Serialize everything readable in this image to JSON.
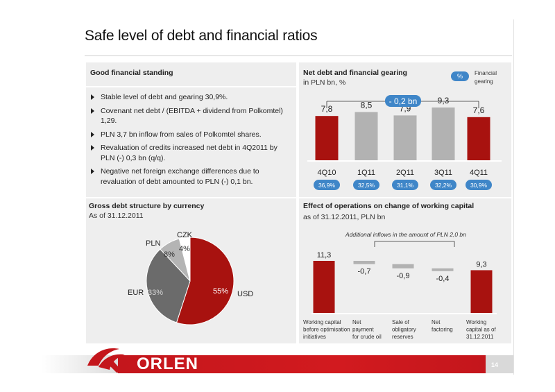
{
  "title": "Safe level of debt and financial ratios",
  "left_top": {
    "heading": "Good financial standing",
    "bullets": [
      "Stable level of debt and gearing 30,9%.",
      "Covenant net debt / (EBITDA + dividend from Polkomtel) 1,29.",
      "PLN 3,7 bn inflow from sales of Polkomtel shares.",
      "Revaluation of credits increased net debt in 4Q2011 by PLN (-) 0,3 bn (q/q).",
      "Negative net foreign exchange differences due to revaluation of debt amounted to PLN (-) 0,1 bn."
    ]
  },
  "net_debt": {
    "heading": "Net debt and financial gearing",
    "subheading": "in PLN bn, %",
    "legend_badge": "%",
    "legend_label": "Financial gearing",
    "change_label": "- 0,2 bn",
    "colors": {
      "red": "#a8120f",
      "grey": "#b2b2b2",
      "badge": "#3f86c8"
    }
  },
  "gross_debt": {
    "heading": "Gross debt structure by currency",
    "subheading": "As of 31.12.2011"
  },
  "working_capital": {
    "heading": "Effect of operations on change of working capital",
    "subheading": "as of 31.12.2011, PLN bn",
    "note": "Additional inflows in the amount of PLN 2,0 bn"
  },
  "footer": {
    "logo": "ORLEN",
    "page": "14"
  },
  "chart_data": [
    {
      "type": "bar",
      "title": "Net debt and financial gearing",
      "categories": [
        "4Q10",
        "1Q11",
        "2Q11",
        "3Q11",
        "4Q11"
      ],
      "values": [
        7.8,
        8.5,
        7.9,
        9.3,
        7.6
      ],
      "value_labels": [
        "7,8",
        "8,5",
        "7,9",
        "9,3",
        "7,6"
      ],
      "gearing": [
        "36,9%",
        "32,5%",
        "31,1%",
        "32,2%",
        "30,9%"
      ],
      "highlight": [
        true,
        false,
        false,
        false,
        true
      ],
      "ylim": [
        0,
        11
      ]
    },
    {
      "type": "pie",
      "title": "Gross debt structure by currency",
      "slices": [
        {
          "name": "USD",
          "value": 55,
          "label": "55%",
          "color": "#a8120f"
        },
        {
          "name": "EUR",
          "value": 33,
          "label": "33%",
          "color": "#6b6b6b"
        },
        {
          "name": "PLN",
          "value": 8,
          "label": "8%",
          "color": "#b4b4b4"
        },
        {
          "name": "CZK",
          "value": 4,
          "label": "4%",
          "color": "#ffffff"
        }
      ]
    },
    {
      "type": "bar",
      "title": "Effect of operations on change of working capital",
      "subtype": "waterfall",
      "categories": [
        "Working capital before optimisation initiatives",
        "Net payment for crude oil",
        "Sale of obligatory reserves",
        "Net factoring",
        "Working capital as of 31.12.2011"
      ],
      "category_lines": [
        [
          "Working capital",
          "before optimisation",
          "initiatives"
        ],
        [
          "Net",
          "payment",
          "for crude oil"
        ],
        [
          "Sale of",
          "obligatory",
          "reserves"
        ],
        [
          "Net",
          "factoring"
        ],
        [
          "Working",
          "capital as of",
          "31.12.2011"
        ]
      ],
      "values": [
        11.3,
        -0.7,
        -0.9,
        -0.4,
        9.3
      ],
      "value_labels": [
        "11,3",
        "-0,7",
        "-0,9",
        "-0,4",
        "9,3"
      ],
      "ylim": [
        0,
        12
      ]
    }
  ]
}
